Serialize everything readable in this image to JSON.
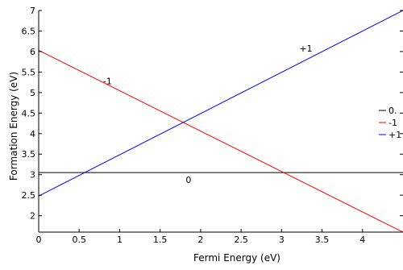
{
  "chart_data": {
    "type": "line",
    "title": "",
    "xlabel": "Fermi Energy (eV)",
    "ylabel": "Formation Energy (eV)",
    "xlim": [
      0,
      4.5
    ],
    "ylim": [
      1.6,
      7
    ],
    "xticks": [
      0,
      0.5,
      1,
      1.5,
      2,
      2.5,
      3,
      3.5,
      4
    ],
    "xtick_labels": [
      "0",
      "0.5",
      "1",
      "1.5",
      "2",
      "2.5",
      "3",
      "3.5",
      "4"
    ],
    "yticks": [
      2,
      2.5,
      3,
      3.5,
      4,
      4.5,
      5,
      5.5,
      6,
      6.5,
      7
    ],
    "ytick_labels": [
      "2",
      "2.5",
      "3",
      "3.5",
      "4",
      "4.5",
      "5",
      "5.5",
      "6",
      "6.5",
      "7"
    ],
    "grid": false,
    "legend_position": "right",
    "series": [
      {
        "name": "0",
        "color": "#000000",
        "x": [
          0,
          4.5
        ],
        "y": [
          3.05,
          3.05
        ]
      },
      {
        "name": "-1",
        "color": "#ff0000",
        "x": [
          0,
          4.5
        ],
        "y": [
          6.03,
          1.6
        ]
      },
      {
        "name": "+1",
        "color": "#0000ff",
        "x": [
          0,
          4.5
        ],
        "y": [
          2.48,
          7.0
        ]
      }
    ],
    "legend_labels": [
      "0.",
      "-1",
      "+1"
    ],
    "annotations": [
      {
        "text": "-1",
        "x": 0.85,
        "y": 5.2
      },
      {
        "text": "+1",
        "x": 3.3,
        "y": 6.0
      },
      {
        "text": "0",
        "x": 1.85,
        "y": 2.8
      }
    ]
  }
}
